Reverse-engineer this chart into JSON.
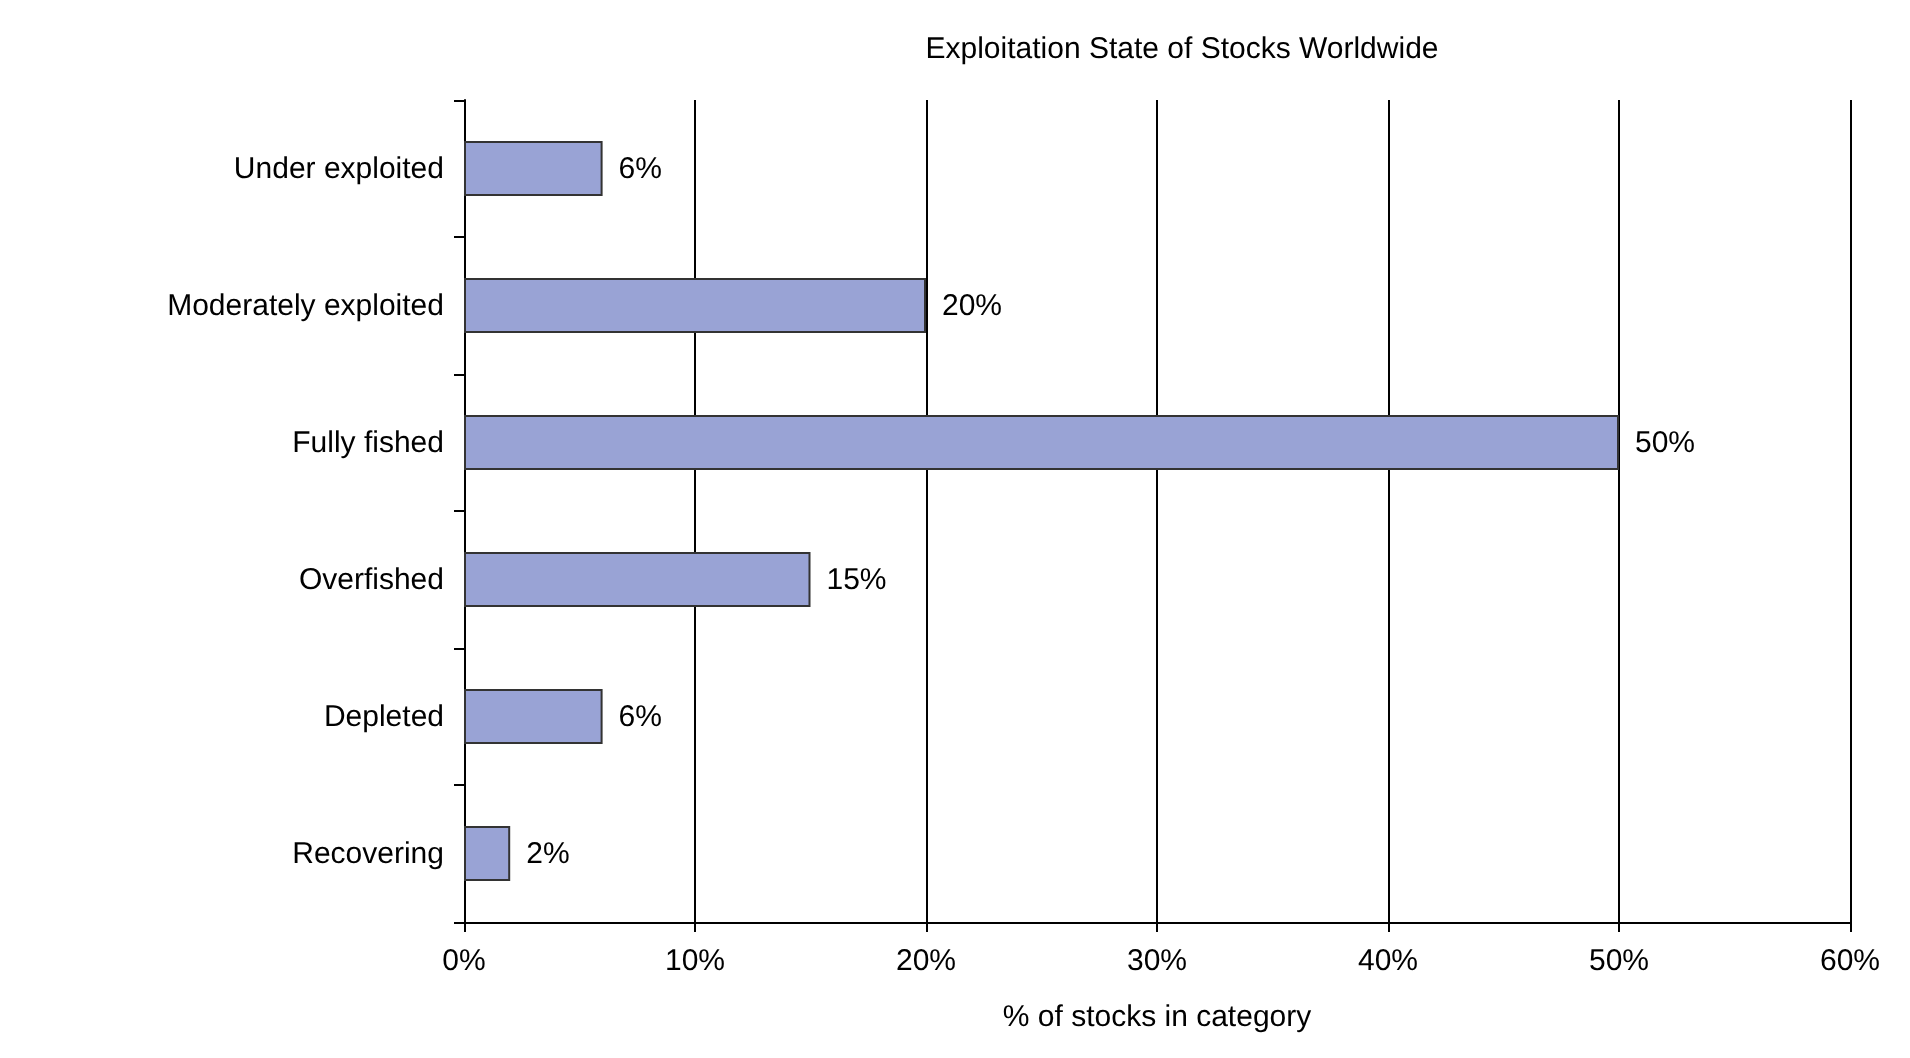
{
  "chart_data": {
    "type": "bar",
    "orientation": "horizontal",
    "title": "Exploitation State of Stocks Worldwide",
    "xlabel": "% of stocks in category",
    "categories": [
      "Under exploited",
      "Moderately exploited",
      "Fully fished",
      "Overfished",
      "Depleted",
      "Recovering"
    ],
    "values": [
      6,
      20,
      50,
      15,
      6,
      2
    ],
    "value_labels": [
      "6%",
      "20%",
      "50%",
      "15%",
      "6%",
      "2%"
    ],
    "color": "#99a3d5",
    "xlim": [
      0,
      60
    ],
    "xticks": [
      {
        "value": 0,
        "label": "0%"
      },
      {
        "value": 10,
        "label": "10%"
      },
      {
        "value": 20,
        "label": "20%"
      },
      {
        "value": 30,
        "label": "30%"
      },
      {
        "value": 40,
        "label": "40%"
      },
      {
        "value": 50,
        "label": "50%"
      },
      {
        "value": 60,
        "label": "60%"
      }
    ],
    "grid": "x"
  }
}
